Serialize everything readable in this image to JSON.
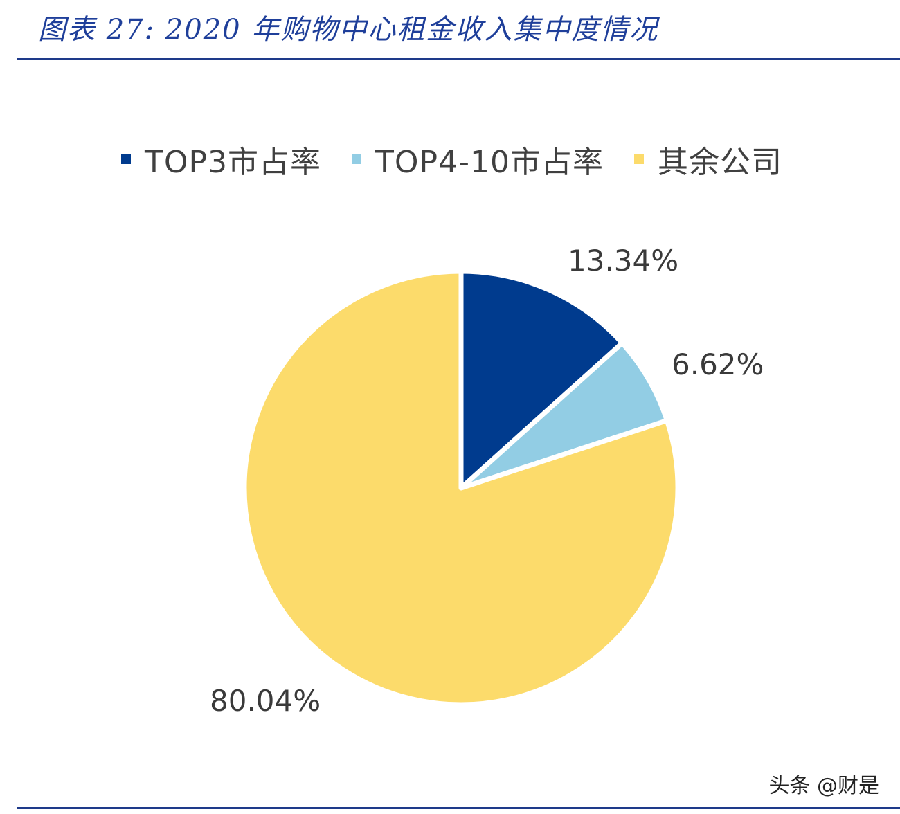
{
  "title": "图表 27:  2020 年购物中心租金收入集中度情况",
  "watermark": "头条 @财是",
  "colors": {
    "accent": "#1e3a8a"
  },
  "chart_data": {
    "type": "pie",
    "title": "",
    "categories": [
      "TOP3市占率",
      "TOP4-10市占率",
      "其余公司"
    ],
    "values": [
      13.34,
      6.62,
      80.04
    ],
    "value_labels": [
      "13.34%",
      "6.62%",
      "80.04%"
    ],
    "colors": [
      "#003b8e",
      "#92cde4",
      "#fcdb6b"
    ],
    "start_angle": "12 o'clock",
    "direction": "clockwise",
    "legend": "top"
  }
}
